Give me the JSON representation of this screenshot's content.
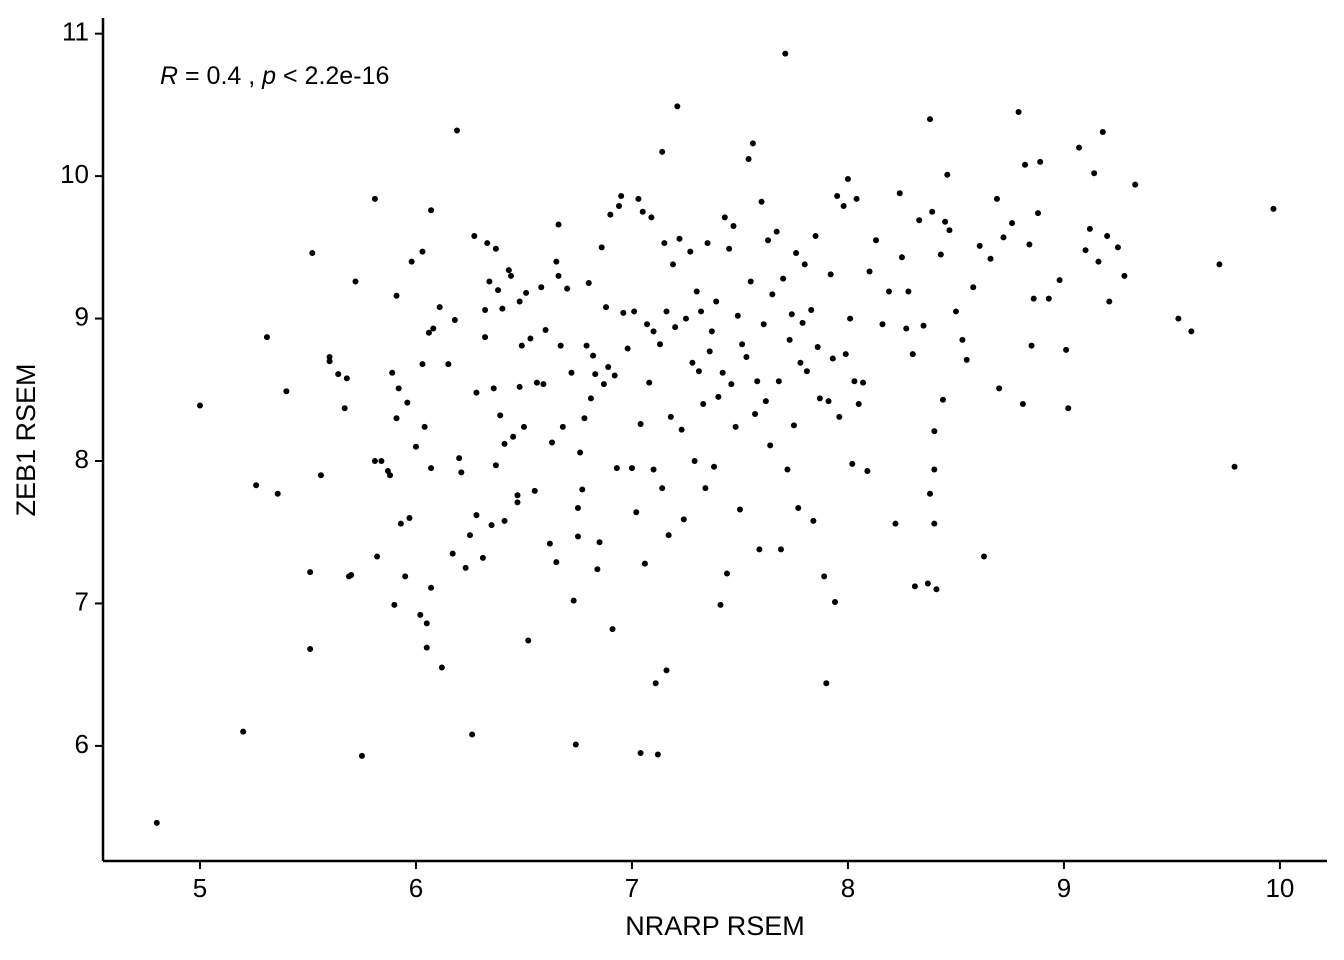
{
  "chart_data": {
    "type": "scatter",
    "x_label": "NRARP RSEM",
    "y_label": "ZEB1 RSEM",
    "annotation": [
      "R",
      " = 0.4 , ",
      "p",
      " < 2.2e-16"
    ],
    "color": "#000000",
    "xlim": [
      4.551,
      10.218
    ],
    "ylim": [
      5.192,
      11.11
    ],
    "xticks": [
      5,
      6,
      7,
      8,
      9,
      10
    ],
    "yticks": [
      6,
      7,
      8,
      9,
      10,
      11
    ],
    "x": [
      4.8,
      5.0,
      5.2,
      5.26,
      5.31,
      5.36,
      5.4,
      5.51,
      5.51,
      5.52,
      5.56,
      5.6,
      5.6,
      5.64,
      5.67,
      5.68,
      5.69,
      5.7,
      5.72,
      5.75,
      5.81,
      5.81,
      5.82,
      5.84,
      5.87,
      5.88,
      5.89,
      5.9,
      5.91,
      5.91,
      5.92,
      5.93,
      5.95,
      5.96,
      5.97,
      5.98,
      6.0,
      6.02,
      6.03,
      6.03,
      6.04,
      6.05,
      6.05,
      6.06,
      6.07,
      6.07,
      6.07,
      6.08,
      6.11,
      6.12,
      6.15,
      6.17,
      6.18,
      6.19,
      6.2,
      6.21,
      6.23,
      6.25,
      6.26,
      6.27,
      6.28,
      6.28,
      6.31,
      6.32,
      6.32,
      6.33,
      6.34,
      6.35,
      6.36,
      6.37,
      6.37,
      6.38,
      6.39,
      6.4,
      6.41,
      6.41,
      6.43,
      6.44,
      6.45,
      6.47,
      6.47,
      6.48,
      6.48,
      6.49,
      6.5,
      6.51,
      6.52,
      6.53,
      6.55,
      6.56,
      6.58,
      6.59,
      6.6,
      6.62,
      6.63,
      6.65,
      6.65,
      6.66,
      6.66,
      6.67,
      6.68,
      6.7,
      6.72,
      6.73,
      6.74,
      6.75,
      6.75,
      6.76,
      6.77,
      6.78,
      6.79,
      6.8,
      6.81,
      6.82,
      6.83,
      6.84,
      6.85,
      6.86,
      6.87,
      6.88,
      6.89,
      6.9,
      6.91,
      6.92,
      6.93,
      6.94,
      6.95,
      6.96,
      6.98,
      7.0,
      7.01,
      7.02,
      7.03,
      7.04,
      7.04,
      7.05,
      7.06,
      7.07,
      7.08,
      7.09,
      7.1,
      7.1,
      7.11,
      7.12,
      7.13,
      7.14,
      7.14,
      7.15,
      7.16,
      7.16,
      7.17,
      7.18,
      7.19,
      7.2,
      7.21,
      7.22,
      7.23,
      7.24,
      7.25,
      7.27,
      7.28,
      7.29,
      7.3,
      7.31,
      7.32,
      7.33,
      7.34,
      7.35,
      7.36,
      7.37,
      7.38,
      7.39,
      7.4,
      7.41,
      7.42,
      7.43,
      7.44,
      7.45,
      7.46,
      7.47,
      7.48,
      7.49,
      7.5,
      7.51,
      7.53,
      7.54,
      7.55,
      7.56,
      7.57,
      7.58,
      7.59,
      7.6,
      7.61,
      7.62,
      7.63,
      7.64,
      7.65,
      7.67,
      7.68,
      7.69,
      7.7,
      7.71,
      7.72,
      7.73,
      7.74,
      7.75,
      7.76,
      7.77,
      7.78,
      7.79,
      7.8,
      7.81,
      7.83,
      7.84,
      7.85,
      7.86,
      7.87,
      7.89,
      7.9,
      7.91,
      7.92,
      7.93,
      7.94,
      7.95,
      7.96,
      7.98,
      7.99,
      8.0,
      8.01,
      8.02,
      8.03,
      8.04,
      8.05,
      8.07,
      8.09,
      8.1,
      8.13,
      8.16,
      8.19,
      8.22,
      8.24,
      8.25,
      8.27,
      8.28,
      8.3,
      8.31,
      8.33,
      8.35,
      8.37,
      8.38,
      8.38,
      8.39,
      8.4,
      8.4,
      8.4,
      8.41,
      8.43,
      8.44,
      8.45,
      8.46,
      8.47,
      8.5,
      8.53,
      8.55,
      8.58,
      8.61,
      8.63,
      8.66,
      8.69,
      8.7,
      8.72,
      8.76,
      8.79,
      8.81,
      8.82,
      8.84,
      8.85,
      8.86,
      8.88,
      8.89,
      8.93,
      8.98,
      9.01,
      9.02,
      9.07,
      9.1,
      9.12,
      9.14,
      9.16,
      9.18,
      9.2,
      9.21,
      9.25,
      9.28,
      9.33,
      9.53,
      9.59,
      9.72,
      9.79,
      9.97
    ],
    "values": [
      5.46,
      8.39,
      6.1,
      7.83,
      8.87,
      7.77,
      8.49,
      6.68,
      7.22,
      9.46,
      7.9,
      8.73,
      8.7,
      8.61,
      8.37,
      8.58,
      7.19,
      7.2,
      9.26,
      5.93,
      9.84,
      8.0,
      7.33,
      8.0,
      7.93,
      7.9,
      8.62,
      6.99,
      8.3,
      9.16,
      8.51,
      7.56,
      7.19,
      8.41,
      7.6,
      9.4,
      8.1,
      6.92,
      9.47,
      8.68,
      8.24,
      6.86,
      6.69,
      8.9,
      7.95,
      7.11,
      9.76,
      8.93,
      9.08,
      6.55,
      8.68,
      7.35,
      8.99,
      10.32,
      8.02,
      7.92,
      7.25,
      7.48,
      6.08,
      9.58,
      7.62,
      8.48,
      7.32,
      9.06,
      8.87,
      9.53,
      9.26,
      7.55,
      8.51,
      7.97,
      9.49,
      9.2,
      8.32,
      9.07,
      8.12,
      7.58,
      9.34,
      9.3,
      8.17,
      7.76,
      7.71,
      8.52,
      9.12,
      8.81,
      8.24,
      9.18,
      6.74,
      8.86,
      7.79,
      8.55,
      9.22,
      8.54,
      8.92,
      7.42,
      8.13,
      7.29,
      9.4,
      9.3,
      9.66,
      8.81,
      8.24,
      9.21,
      8.62,
      7.02,
      6.01,
      7.67,
      7.47,
      8.06,
      7.8,
      8.3,
      8.81,
      9.25,
      8.44,
      8.74,
      8.61,
      7.24,
      7.43,
      9.5,
      8.54,
      9.08,
      8.66,
      9.73,
      6.82,
      8.6,
      7.95,
      9.79,
      9.86,
      9.04,
      8.79,
      7.95,
      9.05,
      7.64,
      9.84,
      8.26,
      5.95,
      9.75,
      7.28,
      8.96,
      8.55,
      9.71,
      8.91,
      7.94,
      6.44,
      5.94,
      8.82,
      10.17,
      7.81,
      9.53,
      9.05,
      6.53,
      7.48,
      8.31,
      9.38,
      8.94,
      10.49,
      9.56,
      8.22,
      7.59,
      9.0,
      9.47,
      8.69,
      8.0,
      9.19,
      8.63,
      9.05,
      8.4,
      7.81,
      9.53,
      8.77,
      8.91,
      7.96,
      9.12,
      8.45,
      6.99,
      8.62,
      9.71,
      7.21,
      9.49,
      8.54,
      9.65,
      8.24,
      9.02,
      7.66,
      8.82,
      8.73,
      10.12,
      9.26,
      10.23,
      8.33,
      8.56,
      7.38,
      9.82,
      8.96,
      8.42,
      9.55,
      8.11,
      9.17,
      9.61,
      8.56,
      7.38,
      9.28,
      10.86,
      7.94,
      8.85,
      9.03,
      8.25,
      9.46,
      7.67,
      8.69,
      8.97,
      9.38,
      8.63,
      9.06,
      7.58,
      9.58,
      8.8,
      8.44,
      7.19,
      6.44,
      8.42,
      9.31,
      8.72,
      7.01,
      9.86,
      8.31,
      9.79,
      8.75,
      9.98,
      9.0,
      7.98,
      8.56,
      9.84,
      8.4,
      8.55,
      7.93,
      9.33,
      9.55,
      8.96,
      9.19,
      7.56,
      9.88,
      9.43,
      8.93,
      9.19,
      8.75,
      7.12,
      9.69,
      8.95,
      7.14,
      10.4,
      7.77,
      9.75,
      8.21,
      7.94,
      7.56,
      7.1,
      9.45,
      8.43,
      9.68,
      10.01,
      9.62,
      9.05,
      8.85,
      8.71,
      9.22,
      9.51,
      7.33,
      9.42,
      9.84,
      8.51,
      9.57,
      9.67,
      10.45,
      8.4,
      10.08,
      9.52,
      8.81,
      9.14,
      9.74,
      10.1,
      9.14,
      9.27,
      8.78,
      8.37,
      10.2,
      9.48,
      9.63,
      10.02,
      9.4,
      10.31,
      9.58,
      9.12,
      9.5,
      9.3,
      9.94,
      9.0,
      8.91,
      9.38,
      7.96,
      9.77
    ]
  }
}
